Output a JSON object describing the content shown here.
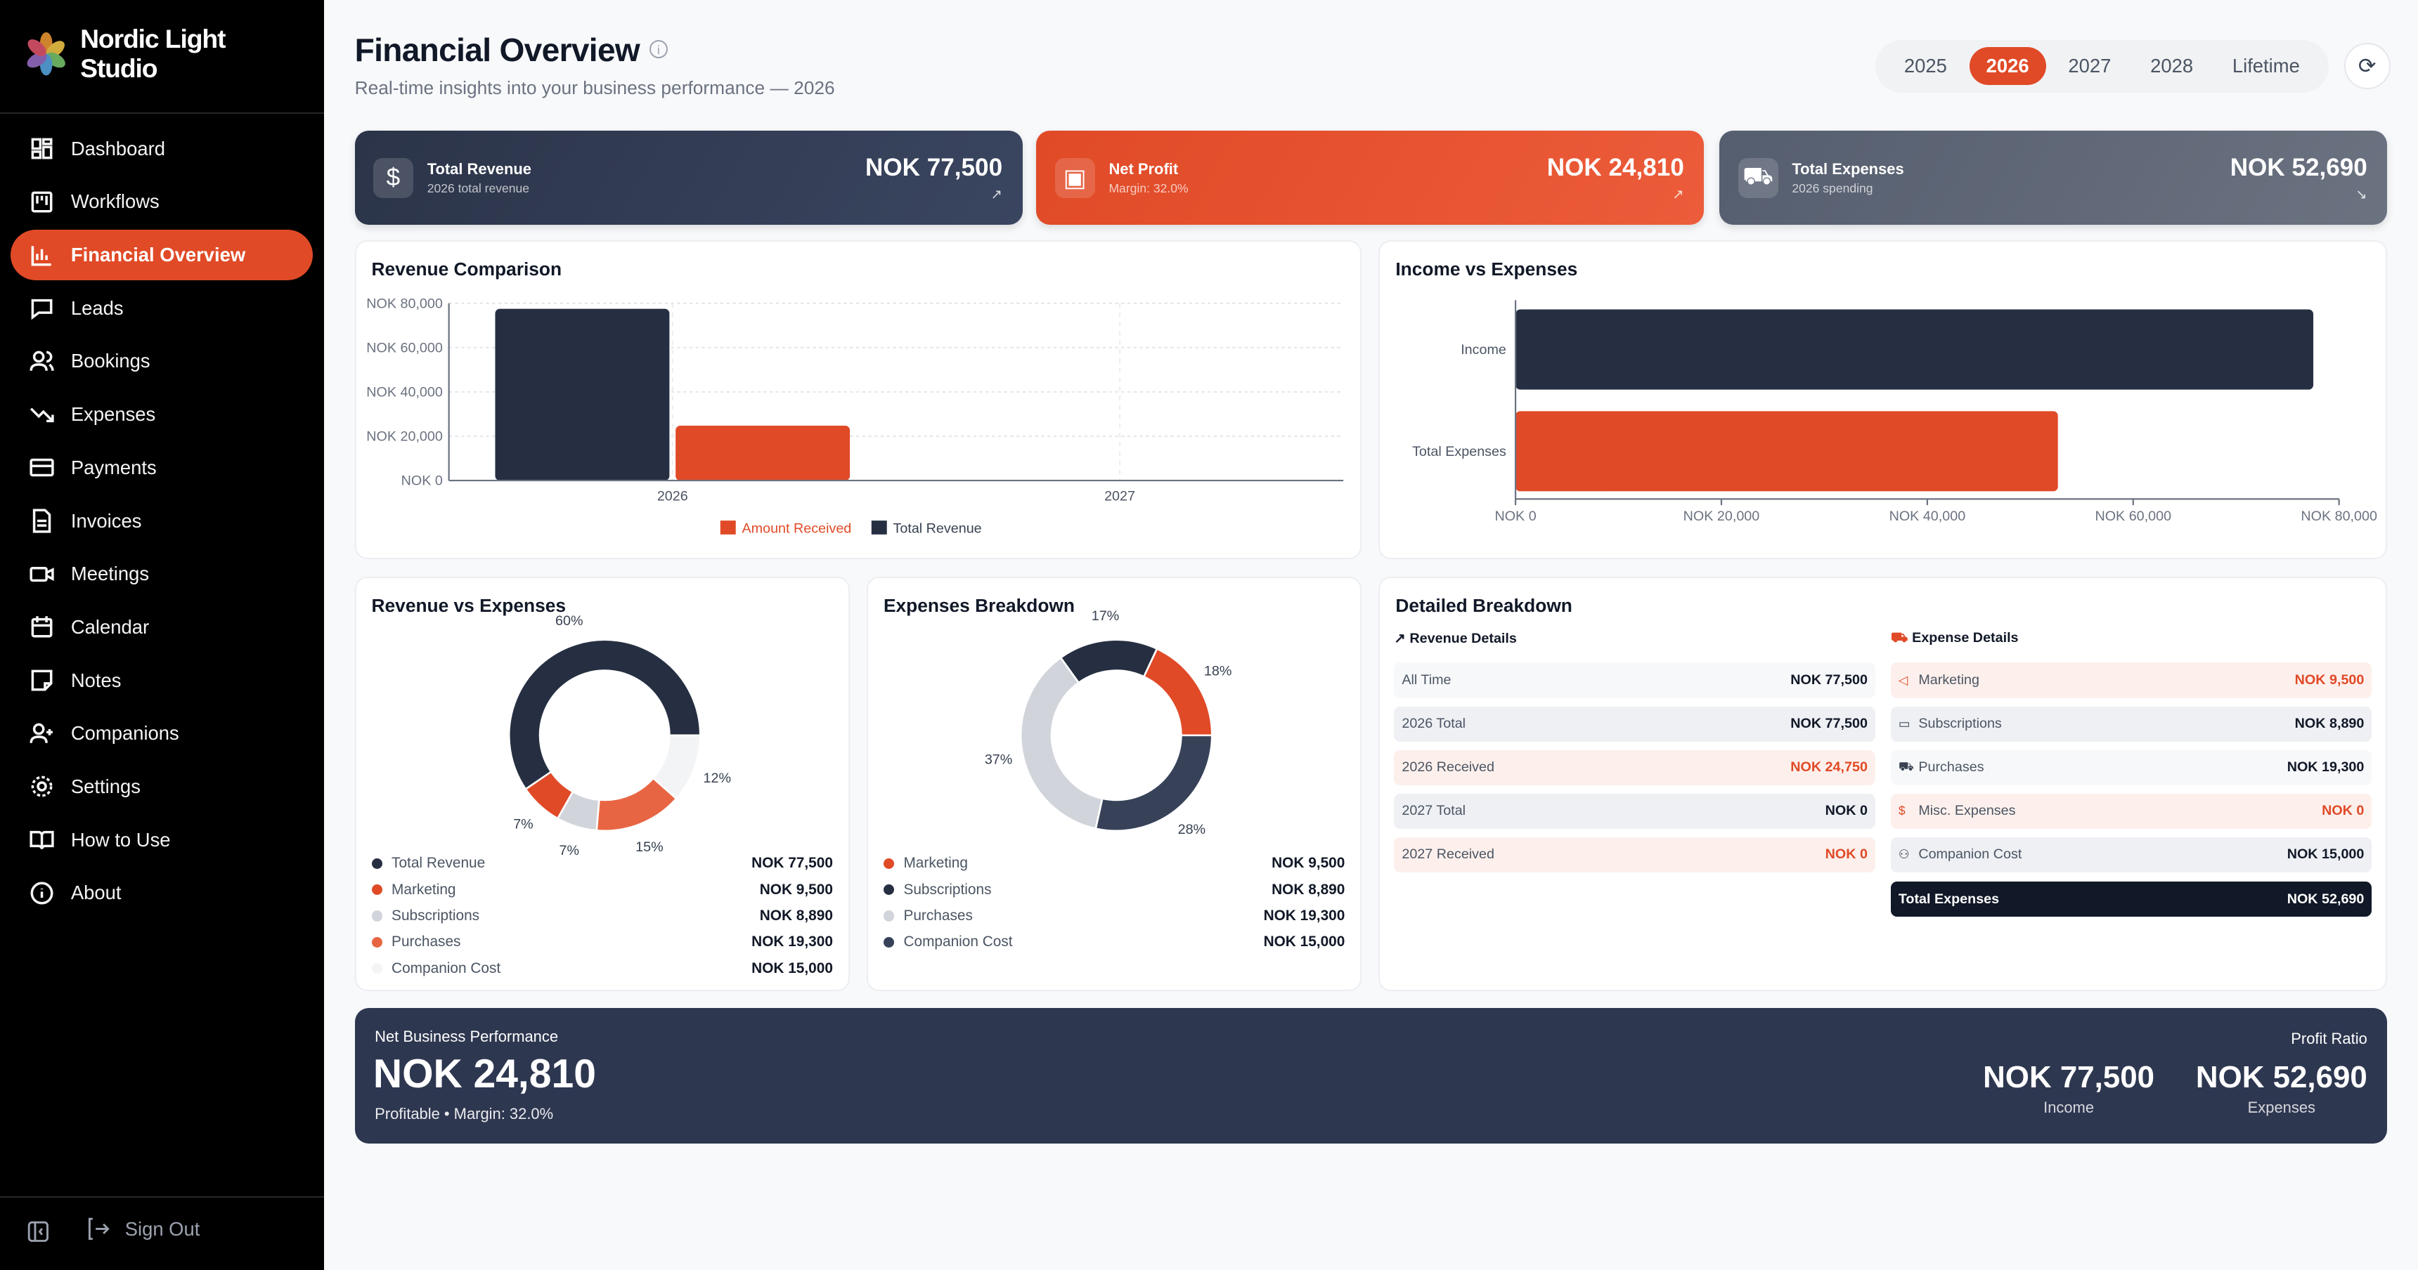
{
  "brand": {
    "name_line1": "Nordic Light",
    "name_line2": "Studio"
  },
  "sidebar": {
    "items": [
      {
        "label": "Dashboard",
        "icon": "dashboard-icon"
      },
      {
        "label": "Workflows",
        "icon": "workflows-icon"
      },
      {
        "label": "Financial Overview",
        "icon": "bar-chart-icon",
        "active": true
      },
      {
        "label": "Leads",
        "icon": "message-icon"
      },
      {
        "label": "Bookings",
        "icon": "users-icon"
      },
      {
        "label": "Expenses",
        "icon": "trending-down-icon"
      },
      {
        "label": "Payments",
        "icon": "credit-card-icon"
      },
      {
        "label": "Invoices",
        "icon": "file-icon"
      },
      {
        "label": "Meetings",
        "icon": "video-icon"
      },
      {
        "label": "Calendar",
        "icon": "calendar-icon"
      },
      {
        "label": "Notes",
        "icon": "note-icon"
      },
      {
        "label": "Companions",
        "icon": "user-plus-icon"
      },
      {
        "label": "Settings",
        "icon": "gear-icon"
      },
      {
        "label": "How to Use",
        "icon": "book-icon"
      },
      {
        "label": "About",
        "icon": "info-icon"
      }
    ],
    "sign_out": "Sign Out"
  },
  "header": {
    "title": "Financial Overview",
    "subtitle": "Real-time insights into your business performance — 2026",
    "years": [
      "2025",
      "2026",
      "2027",
      "2028",
      "Lifetime"
    ],
    "active_year": "2026"
  },
  "kpis": [
    {
      "title": "Total Revenue",
      "sub": "2026 total revenue",
      "value": "NOK 77,500",
      "color": "#2b3448"
    },
    {
      "title": "Net Profit",
      "sub": "Margin: 32.0%",
      "value": "NOK 24,810",
      "color": "#e04a27"
    },
    {
      "title": "Total Expenses",
      "sub": "2026 spending",
      "value": "NOK 52,690",
      "color": "#555e6f"
    }
  ],
  "colors": {
    "accent": "#e04a27",
    "navy": "#262f42"
  },
  "chart_data": [
    {
      "type": "bar",
      "title": "Revenue Comparison",
      "categories": [
        "2026",
        "2027"
      ],
      "series": [
        {
          "name": "Total Revenue",
          "values": [
            77500,
            0
          ],
          "color": "#262f42"
        },
        {
          "name": "Amount Received",
          "values": [
            24750,
            0
          ],
          "color": "#e04a27"
        }
      ],
      "legend": [
        "Amount Received",
        "Total Revenue"
      ],
      "yticks": [
        "NOK 0",
        "NOK 20,000",
        "NOK 40,000",
        "NOK 60,000",
        "NOK 80,000"
      ],
      "ylim": [
        0,
        80000
      ]
    },
    {
      "type": "bar",
      "orientation": "horizontal",
      "title": "Income vs Expenses",
      "categories": [
        "Income",
        "Total Expenses"
      ],
      "values": [
        77500,
        52690
      ],
      "colors": [
        "#262f42",
        "#e04a27"
      ],
      "xticks": [
        "NOK 0",
        "NOK 20,000",
        "NOK 40,000",
        "NOK 60,000",
        "NOK 80,000"
      ],
      "xlim": [
        0,
        80000
      ]
    },
    {
      "type": "pie",
      "title": "Revenue vs Expenses",
      "labels": [
        "Total Revenue",
        "Marketing",
        "Subscriptions",
        "Purchases",
        "Companion Cost"
      ],
      "values": [
        77500,
        9500,
        8890,
        19300,
        15000
      ],
      "display": [
        "NOK 77,500",
        "NOK 9,500",
        "NOK 8,890",
        "NOK 19,300",
        "NOK 15,000"
      ],
      "percent_labels": [
        "60%",
        "7%",
        "7%",
        "15%",
        "12%"
      ],
      "colors": [
        "#262f42",
        "#e04a27",
        "#d1d5db",
        "#e86543",
        "#f3f4f6"
      ]
    },
    {
      "type": "pie",
      "title": "Expenses Breakdown",
      "labels": [
        "Marketing",
        "Subscriptions",
        "Purchases",
        "Companion Cost"
      ],
      "values": [
        9500,
        8890,
        19300,
        15000
      ],
      "display": [
        "NOK 9,500",
        "NOK 8,890",
        "NOK 19,300",
        "NOK 15,000"
      ],
      "percent_labels": [
        "18%",
        "17%",
        "37%",
        "28%"
      ],
      "colors": [
        "#e04a27",
        "#262f42",
        "#d1d5db",
        "#374259"
      ]
    }
  ],
  "detail": {
    "title": "Detailed Breakdown",
    "revenue_title": "Revenue Details",
    "expense_title": "Expense Details",
    "revenue": [
      {
        "label": "All Time",
        "value": "NOK 77,500",
        "style": "lt"
      },
      {
        "label": "2026 Total",
        "value": "NOK 77,500",
        "style": "gr"
      },
      {
        "label": "2026 Received",
        "value": "NOK 24,750",
        "style": "red"
      },
      {
        "label": "2027 Total",
        "value": "NOK 0",
        "style": "gr"
      },
      {
        "label": "2027 Received",
        "value": "NOK 0",
        "style": "red"
      }
    ],
    "expenses": [
      {
        "label": "Marketing",
        "value": "NOK 9,500",
        "style": "red",
        "icon": "megaphone-icon",
        "glyph": "◁"
      },
      {
        "label": "Subscriptions",
        "value": "NOK 8,890",
        "style": "gr",
        "icon": "credit-card-icon",
        "glyph": "▭"
      },
      {
        "label": "Purchases",
        "value": "NOK 19,300",
        "style": "lt",
        "icon": "cart-icon",
        "glyph": "⛟"
      },
      {
        "label": "Misc. Expenses",
        "value": "NOK 0",
        "style": "red",
        "icon": "receipt-icon",
        "glyph": "$"
      },
      {
        "label": "Companion Cost",
        "value": "NOK 15,000",
        "style": "gr",
        "icon": "users-icon",
        "glyph": "⚇"
      }
    ],
    "total_label": "Total Expenses",
    "total_value": "NOK 52,690"
  },
  "banner": {
    "title": "Net Business Performance",
    "value": "NOK 24,810",
    "status": "Profitable • Margin: 32.0%",
    "ratio_label": "Profit Ratio",
    "income": "NOK 77,500",
    "income_label": "Income",
    "expenses": "NOK 52,690",
    "expenses_label": "Expenses"
  }
}
